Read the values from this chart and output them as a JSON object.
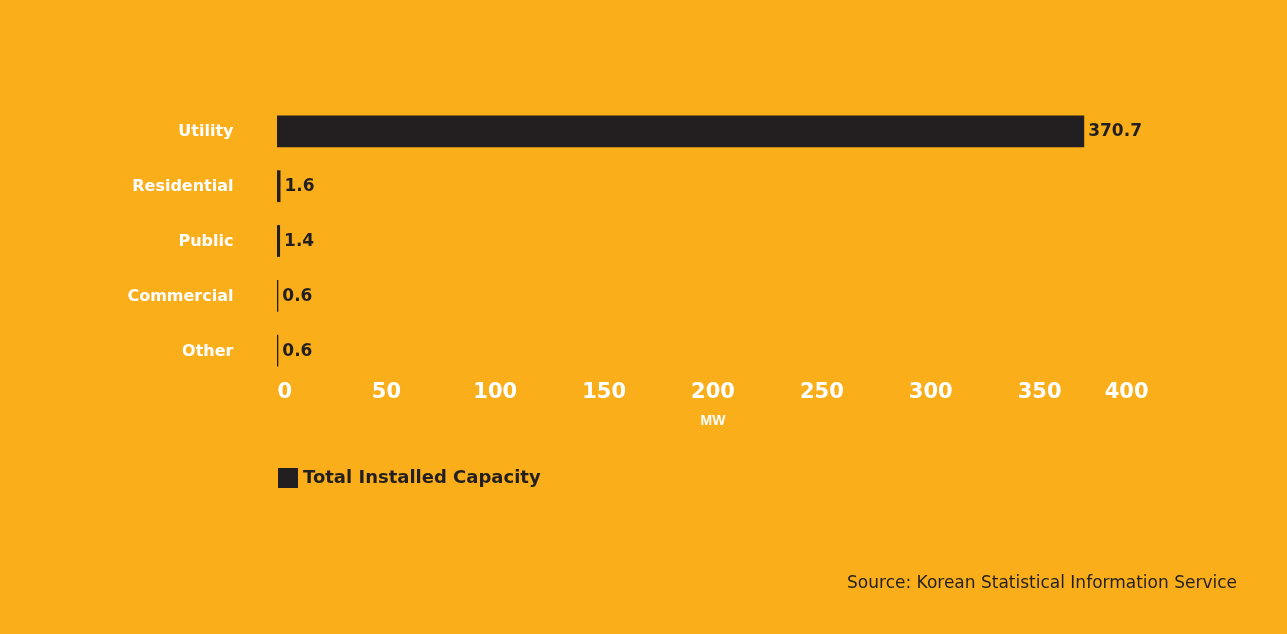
{
  "chart_data": {
    "type": "bar",
    "orientation": "horizontal",
    "categories": [
      "Utility",
      "Residential",
      "Public",
      "Commercial",
      "Other"
    ],
    "series": [
      {
        "name": "Total Installed Capacity",
        "color": "#231f20",
        "values": [
          370.7,
          1.6,
          1.4,
          0.6,
          0.6
        ]
      }
    ],
    "xlim": [
      0,
      400
    ],
    "xticks": [
      0,
      50,
      100,
      150,
      200,
      250,
      300,
      350,
      400
    ],
    "xlabel": "MW",
    "data_labels": true,
    "legend": "bottom",
    "grid": false,
    "annotations": [
      "Source: Korean Statistical Information Service"
    ]
  }
}
